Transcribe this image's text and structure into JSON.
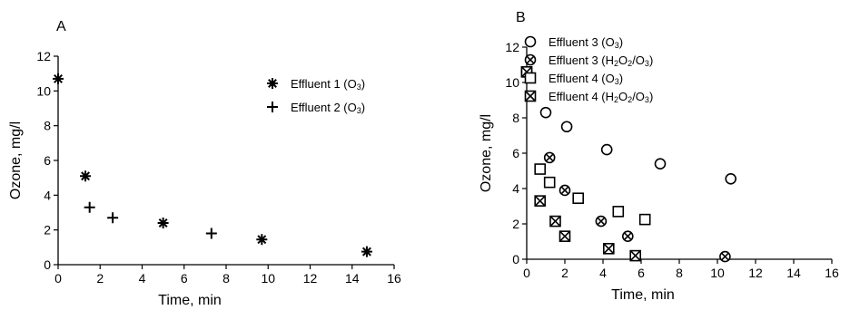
{
  "chart_data": [
    {
      "type": "scatter",
      "panel_label": "A",
      "xlabel": "Time, min",
      "ylabel": "Ozone, mg/l",
      "xlim": [
        0,
        16
      ],
      "ylim": [
        0,
        12
      ],
      "xticks": [
        "0",
        "2",
        "4",
        "6",
        "8",
        "10",
        "12",
        "14",
        "16"
      ],
      "yticks": [
        "0",
        "2",
        "4",
        "6",
        "8",
        "10",
        "12"
      ],
      "legend_position": "top-right",
      "series": [
        {
          "name": "Effluent 1 (O3)",
          "name_parts": [
            [
              "Effluent 1 (O",
              "n"
            ],
            [
              "3",
              "sub"
            ],
            [
              ")",
              "n"
            ]
          ],
          "marker": "asterisk",
          "points": [
            [
              0,
              10.7
            ],
            [
              1.3,
              5.1
            ],
            [
              5.0,
              2.4
            ],
            [
              9.7,
              1.45
            ],
            [
              14.7,
              0.75
            ]
          ]
        },
        {
          "name": "Effluent 2 (O3)",
          "name_parts": [
            [
              "Effluent 2 (O",
              "n"
            ],
            [
              "3",
              "sub"
            ],
            [
              ")",
              "n"
            ]
          ],
          "marker": "plus",
          "points": [
            [
              1.5,
              3.3
            ],
            [
              2.6,
              2.7
            ],
            [
              7.3,
              1.8
            ]
          ]
        }
      ]
    },
    {
      "type": "scatter",
      "panel_label": "B",
      "xlabel": "Time, min",
      "ylabel": "Ozone, mg/l",
      "xlim": [
        0,
        16
      ],
      "ylim": [
        0,
        12
      ],
      "xticks": [
        "0",
        "2",
        "4",
        "6",
        "8",
        "10",
        "12",
        "14",
        "16"
      ],
      "yticks": [
        "0",
        "2",
        "4",
        "6",
        "8",
        "10",
        "12"
      ],
      "legend_position": "top-right",
      "series": [
        {
          "name": "Effluent 3 (O3)",
          "name_parts": [
            [
              "Effluent 3 (O",
              "n"
            ],
            [
              "3",
              "sub"
            ],
            [
              ")",
              "n"
            ]
          ],
          "marker": "circle",
          "points": [
            [
              0,
              10.6
            ],
            [
              1.0,
              8.3
            ],
            [
              2.1,
              7.5
            ],
            [
              4.2,
              6.2
            ],
            [
              7.0,
              5.4
            ],
            [
              10.7,
              4.55
            ]
          ]
        },
        {
          "name": "Effluent 3 (H2O2/O3)",
          "name_parts": [
            [
              "Effluent 3 (H",
              "n"
            ],
            [
              "2",
              "sub"
            ],
            [
              "O",
              "n"
            ],
            [
              "2",
              "sub"
            ],
            [
              "/O",
              "n"
            ],
            [
              "3",
              "sub"
            ],
            [
              ")",
              "n"
            ]
          ],
          "marker": "circle-x",
          "points": [
            [
              0,
              10.6
            ],
            [
              1.2,
              5.75
            ],
            [
              2.0,
              3.9
            ],
            [
              3.9,
              2.15
            ],
            [
              5.3,
              1.3
            ],
            [
              10.4,
              0.15
            ]
          ]
        },
        {
          "name": "Effluent 4 (O3)",
          "name_parts": [
            [
              "Effluent 4 (O",
              "n"
            ],
            [
              "3",
              "sub"
            ],
            [
              ")",
              "n"
            ]
          ],
          "marker": "square",
          "points": [
            [
              0,
              10.6
            ],
            [
              0.7,
              5.1
            ],
            [
              1.2,
              4.35
            ],
            [
              2.7,
              3.45
            ],
            [
              4.8,
              2.7
            ],
            [
              6.2,
              2.25
            ]
          ]
        },
        {
          "name": "Effluent 4 (H2O2/O3)",
          "name_parts": [
            [
              "Effluent 4 (H",
              "n"
            ],
            [
              "2",
              "sub"
            ],
            [
              "O",
              "n"
            ],
            [
              "2",
              "sub"
            ],
            [
              "/O",
              "n"
            ],
            [
              "3",
              "sub"
            ],
            [
              ")",
              "n"
            ]
          ],
          "marker": "square-x",
          "points": [
            [
              0,
              10.6
            ],
            [
              0.7,
              3.3
            ],
            [
              1.5,
              2.15
            ],
            [
              2.0,
              1.3
            ],
            [
              4.3,
              0.6
            ],
            [
              5.7,
              0.2
            ]
          ]
        }
      ]
    }
  ]
}
